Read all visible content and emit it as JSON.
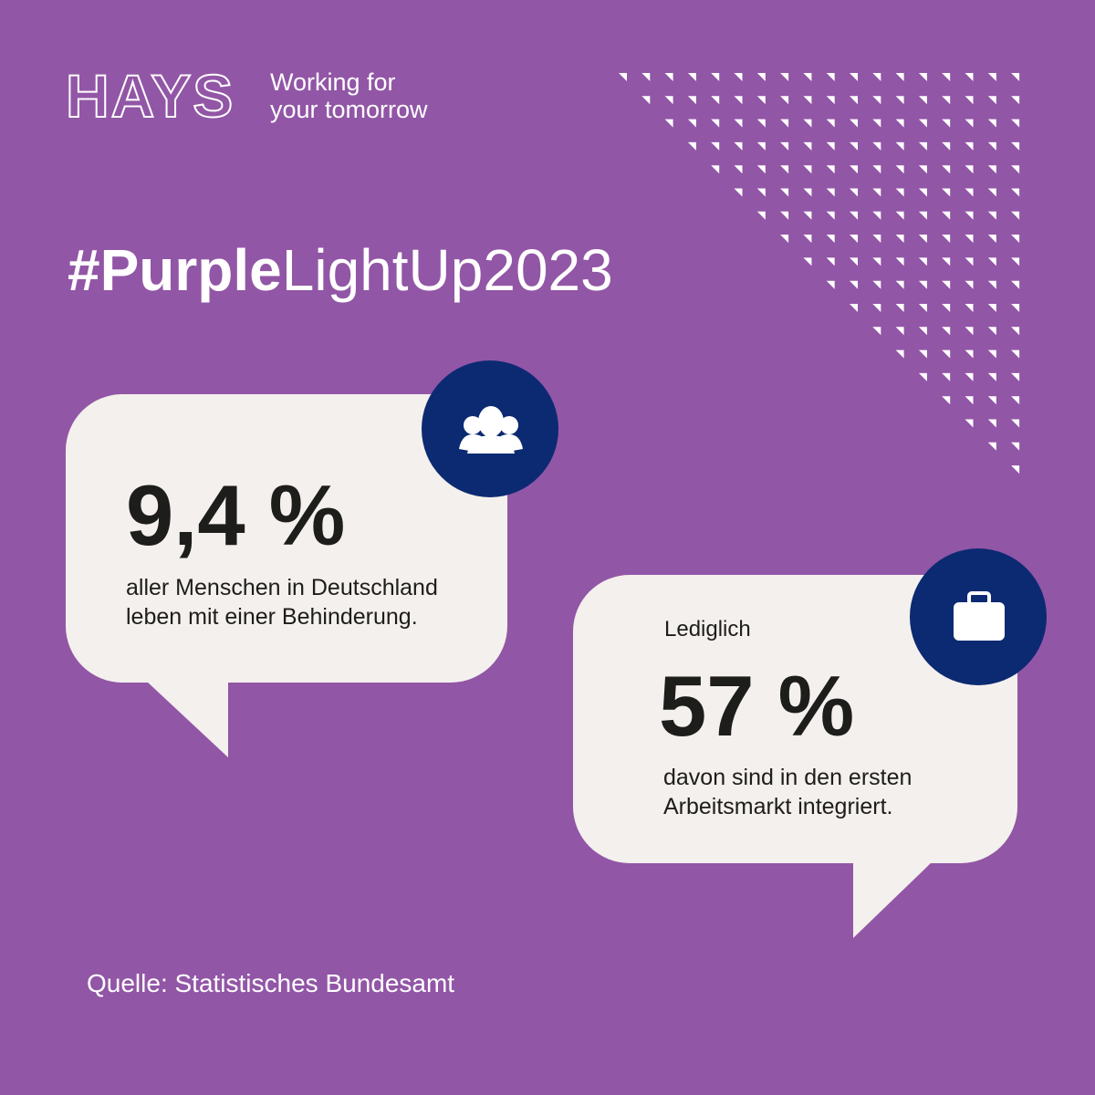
{
  "logo": {
    "brand": "HAYS",
    "tagline_line1": "Working for",
    "tagline_line2": "your tomorrow"
  },
  "headline": {
    "bold": "#Purple",
    "regular": "LightUp2023"
  },
  "stat1": {
    "value": "9,4 %",
    "line1": "aller Menschen in Deutschland",
    "line2": "leben mit einer Behinderung."
  },
  "stat2": {
    "intro": "Lediglich",
    "value": "57 %",
    "line1": "davon sind in den ersten",
    "line2": "Arbeitsmarkt integriert."
  },
  "source": "Quelle: Statistisches Bundesamt"
}
